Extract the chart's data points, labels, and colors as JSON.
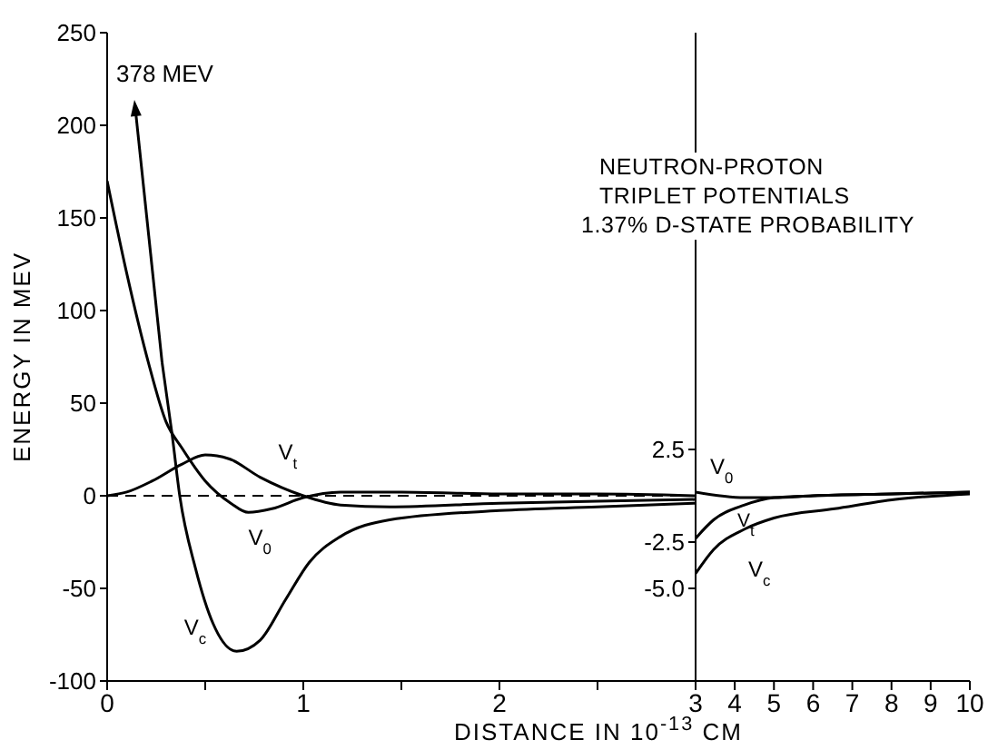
{
  "chart_data": [
    {
      "type": "line",
      "xlabel": "DISTANCE IN 10$^{-13}$ CM",
      "ylabel": "ENERGY IN MEV",
      "xlim": [
        0,
        3
      ],
      "xticks": [
        0,
        {
          "value": 0.5,
          "label": null
        },
        1,
        {
          "value": 1.5,
          "label": null
        },
        2,
        {
          "value": 2.5,
          "label": null
        },
        {
          "value": 3,
          "label": null
        }
      ],
      "ylim": [
        -100,
        250
      ],
      "yticks": [
        -100,
        -50,
        0,
        50,
        100,
        150,
        200,
        250
      ],
      "ref_lines": [
        {
          "axis": "y",
          "value": 0,
          "line_style": "dashed",
          "color": "#000000"
        }
      ],
      "annotations": [
        "378 MEV",
        "NEUTRON-PROTON",
        "TRIPLET POTENTIALS",
        "1.37% D-STATE PROBABILITY"
      ],
      "series": [
        {
          "name": "V$_{c}$",
          "color": "#000000",
          "x": [
            0.28,
            0.33,
            0.37,
            0.45,
            0.54,
            0.66,
            0.78,
            0.91,
            1.03,
            1.19,
            1.44,
            2,
            2.5,
            3
          ],
          "values": [
            72,
            34,
            0,
            -39,
            -69,
            -84,
            -78,
            -56,
            -36,
            -22,
            -13,
            -8,
            -6,
            -4
          ]
        },
        {
          "name": "V$_{t}$",
          "color": "#000000",
          "x": [
            0,
            0.1,
            0.23,
            0.38,
            0.5,
            0.62,
            0.78,
            1,
            1.19,
            1.44,
            2,
            2.5,
            3
          ],
          "values": [
            0,
            2,
            8,
            17,
            22,
            20,
            10,
            0,
            -5,
            -6,
            -4,
            -3,
            -2
          ]
        },
        {
          "name": "V$_{0}$",
          "color": "#000000",
          "x": [
            0,
            0.1,
            0.21,
            0.3,
            0.38,
            0.5,
            0.63,
            0.72,
            0.84,
            1,
            1.19,
            1.5,
            2,
            2.5,
            3
          ],
          "values": [
            170,
            120,
            72,
            40,
            26,
            8,
            -4,
            -9,
            -7,
            -1,
            2,
            2,
            1,
            1,
            0
          ]
        }
      ]
    },
    {
      "type": "line",
      "xlim": [
        3,
        10
      ],
      "xticks": [
        3,
        4,
        5,
        6,
        7,
        8,
        9,
        10
      ],
      "ylim": [
        -10,
        25
      ],
      "yticks": [
        {
          "value": -5,
          "label": "-5.0"
        },
        -2.5,
        2.5
      ],
      "series": [
        {
          "name": "V$_{c}$",
          "color": "#000000",
          "x": [
            3,
            3.46,
            4.25,
            5,
            6.55,
            8.1,
            10
          ],
          "values": [
            -4.2,
            -2.9,
            -1.8,
            -1.2,
            -0.7,
            -0.2,
            0.1
          ]
        },
        {
          "name": "V$_{t}$",
          "color": "#000000",
          "x": [
            3,
            3.46,
            4.25,
            5,
            6,
            8,
            10
          ],
          "values": [
            -2.3,
            -1.3,
            -0.5,
            -0.1,
            0,
            0.1,
            0.2
          ]
        },
        {
          "name": "V$_{0}$",
          "color": "#000000",
          "x": [
            3,
            4.25,
            5,
            6,
            8,
            10
          ],
          "values": [
            0.2,
            -0.1,
            -0.1,
            0,
            0.1,
            0.2
          ]
        }
      ]
    }
  ]
}
